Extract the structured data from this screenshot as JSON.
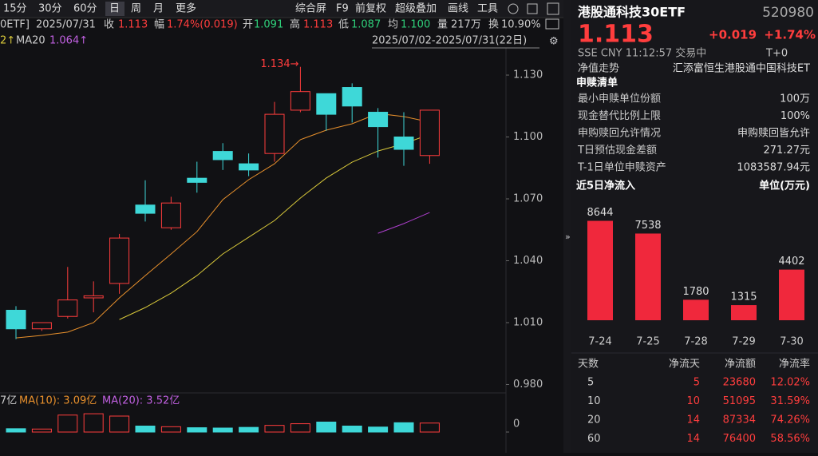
{
  "toolbar": {
    "periods": [
      "15分",
      "30分",
      "60分",
      "日",
      "周",
      "月",
      "更多"
    ],
    "tools": [
      "综合屏",
      "F9",
      "前复权",
      "超级叠加",
      "画线",
      "工具"
    ]
  },
  "quote_bar": {
    "name": "0ETF]",
    "date": "2025/07/31",
    "items": [
      {
        "label": "收",
        "value": "1.113"
      },
      {
        "label": "幅",
        "value": "1.74%(0.019)"
      },
      {
        "label": "开",
        "value": "1.091"
      },
      {
        "label": "高",
        "value": "1.113"
      },
      {
        "label": "低",
        "value": "1.087"
      },
      {
        "label": "均",
        "value": "1.100"
      },
      {
        "label": "量",
        "value": "217万"
      },
      {
        "label": "换",
        "value": "10.90%"
      }
    ]
  },
  "ma_bar": {
    "ma10_tail": "2↑",
    "ma20_label": "MA20",
    "ma20_value": "1.064↑",
    "range": "2025/07/02-2025/07/31(22日)"
  },
  "kline": {
    "ylim": [
      0.9767,
      1.1424
    ],
    "yticks": [
      {
        "value": 1.13,
        "label": "1.130"
      },
      {
        "value": 1.1,
        "label": "1.100"
      },
      {
        "value": 1.07,
        "label": "1.070"
      },
      {
        "value": 1.04,
        "label": "1.040"
      },
      {
        "value": 1.01,
        "label": "1.010"
      },
      {
        "value": 0.98,
        "label": "0.980"
      }
    ],
    "high_note": "1.134→",
    "candles": [
      {
        "open": 1.016,
        "close": 1.007,
        "high": 1.018,
        "low": 1.002
      },
      {
        "open": 1.007,
        "close": 1.01,
        "high": 1.01,
        "low": 1.006
      },
      {
        "open": 1.013,
        "close": 1.021,
        "high": 1.037,
        "low": 1.012
      },
      {
        "open": 1.022,
        "close": 1.023,
        "high": 1.03,
        "low": 1.015
      },
      {
        "open": 1.029,
        "close": 1.051,
        "high": 1.053,
        "low": 1.024
      },
      {
        "open": 1.067,
        "close": 1.063,
        "high": 1.079,
        "low": 1.059
      },
      {
        "open": 1.056,
        "close": 1.068,
        "high": 1.071,
        "low": 1.055
      },
      {
        "open": 1.08,
        "close": 1.078,
        "high": 1.088,
        "low": 1.073
      },
      {
        "open": 1.093,
        "close": 1.089,
        "high": 1.097,
        "low": 1.084
      },
      {
        "open": 1.087,
        "close": 1.084,
        "high": 1.092,
        "low": 1.081
      },
      {
        "open": 1.092,
        "close": 1.111,
        "high": 1.117,
        "low": 1.088
      },
      {
        "open": 1.113,
        "close": 1.122,
        "high": 1.134,
        "low": 1.112
      },
      {
        "open": 1.121,
        "close": 1.111,
        "high": 1.121,
        "low": 1.103
      },
      {
        "open": 1.124,
        "close": 1.115,
        "high": 1.126,
        "low": 1.107
      },
      {
        "open": 1.112,
        "close": 1.105,
        "high": 1.114,
        "low": 1.09
      },
      {
        "open": 1.1,
        "close": 1.094,
        "high": 1.112,
        "low": 1.086
      },
      {
        "open": 1.091,
        "close": 1.113,
        "high": 1.113,
        "low": 1.087
      }
    ],
    "ma_lines": [
      {
        "color": "#e8902c",
        "values": [
          1.0026,
          1.0038,
          1.0054,
          1.01,
          1.022,
          1.0328,
          1.0433,
          1.0541,
          1.0696,
          1.0793,
          1.087,
          1.0987,
          1.1033,
          1.1064,
          1.1114,
          1.1099,
          1.1072
        ]
      },
      {
        "color": "#d8c83a",
        "values": [
          null,
          null,
          null,
          null,
          1.0115,
          1.0173,
          1.0243,
          1.0328,
          1.0433,
          1.0514,
          1.0595,
          1.0704,
          1.0801,
          1.0878,
          1.0932,
          1.0967,
          1.1013
        ]
      },
      {
        "color": "#b040d0",
        "values": [
          null,
          null,
          null,
          null,
          null,
          null,
          null,
          null,
          null,
          null,
          null,
          null,
          null,
          null,
          1.0533,
          1.058,
          1.0634
        ]
      }
    ],
    "volume": {
      "legend": [
        "7亿",
        "MA(10): 3.09亿",
        "MA(20): 3.52亿"
      ],
      "ylim": [
        0,
        6
      ],
      "yticks": [
        0
      ],
      "values": [
        1.0,
        0.9,
        5.1,
        5.5,
        4.8,
        1.8,
        1.6,
        1.3,
        1.2,
        1.4,
        2.0,
        2.5,
        3.0,
        1.8,
        1.5,
        2.8,
        2.7
      ]
    }
  },
  "side": {
    "title": "港股通科技30ETF",
    "code": "520980",
    "price": "1.113",
    "change": "+0.019",
    "change_pct": "+1.74%",
    "status": "SSE  CNY  11:12:57  交易中",
    "t0": "T+0",
    "nav_label": "净值走势",
    "fund_name": "汇添富恒生港股通中国科技ET",
    "list_title": "申赎清单",
    "rows": [
      [
        "最小申赎单位份额",
        "100万"
      ],
      [
        "现金替代比例上限",
        "100%"
      ],
      [
        "申购赎回允许情况",
        "申购赎回皆允许"
      ],
      [
        "T日预估现金差额",
        "271.27元"
      ],
      [
        "T-1日单位申赎资产",
        "1083587.94元"
      ]
    ]
  },
  "inflow": {
    "type": "bar",
    "title": "近5日净流入",
    "unit": "单位(万元)",
    "categories": [
      "7-24",
      "7-25",
      "7-28",
      "7-29",
      "7-30"
    ],
    "values": [
      8644,
      7538,
      1780,
      1315,
      4402
    ],
    "ylim": [
      0,
      10000
    ],
    "color": "#f0283c"
  },
  "flow_table": {
    "header": [
      "天数",
      "净流天",
      "净流额",
      "净流率"
    ],
    "rows": [
      [
        "5",
        "5",
        "23680",
        "12.02%"
      ],
      [
        "10",
        "10",
        "51095",
        "31.59%"
      ],
      [
        "20",
        "14",
        "87334",
        "74.26%"
      ],
      [
        "60",
        "14",
        "76400",
        "58.56%"
      ]
    ]
  }
}
